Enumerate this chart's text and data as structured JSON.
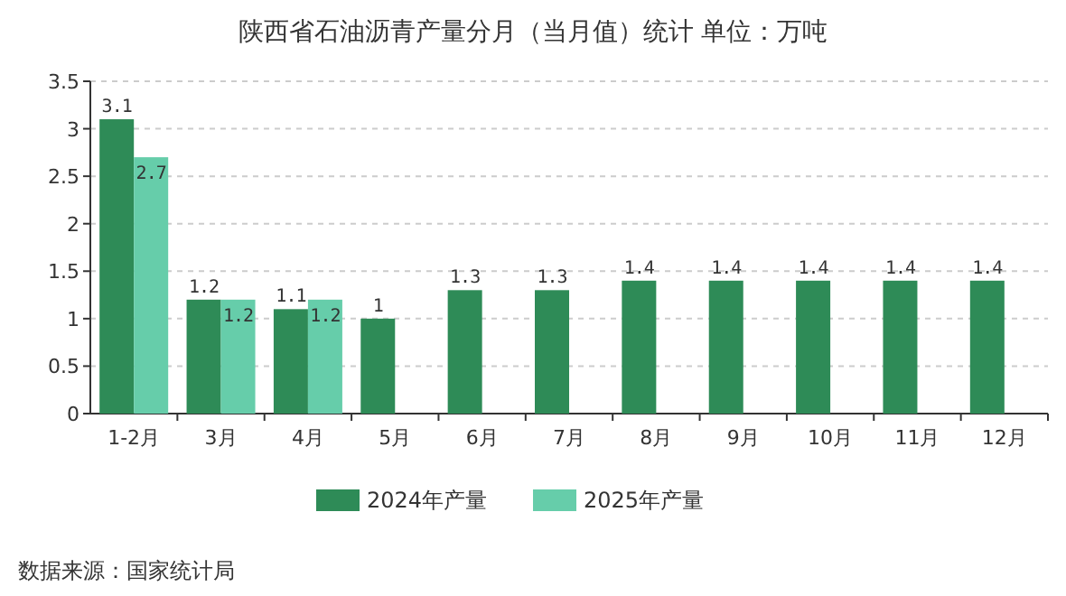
{
  "chart_data": {
    "type": "bar",
    "title": "陕西省石油沥青产量分月（当月值）统计 单位：万吨",
    "categories": [
      "1-2月",
      "3月",
      "4月",
      "5月",
      "6月",
      "7月",
      "8月",
      "9月",
      "10月",
      "11月",
      "12月"
    ],
    "series": [
      {
        "name": "2024年产量",
        "color": "#2e8b57",
        "values": [
          3.1,
          1.2,
          1.1,
          1,
          1.3,
          1.3,
          1.4,
          1.4,
          1.4,
          1.4,
          1.4
        ]
      },
      {
        "name": "2025年产量",
        "color": "#66cdaa",
        "values": [
          2.7,
          1.2,
          1.2,
          null,
          null,
          null,
          null,
          null,
          null,
          null,
          null
        ]
      }
    ],
    "ylim": [
      0,
      3.5
    ],
    "yticks": [
      0,
      0.5,
      1,
      1.5,
      2,
      2.5,
      3,
      3.5
    ],
    "grid": "y",
    "legend": "bottom",
    "data_labels": true,
    "annotations": [
      "数据来源：国家统计局"
    ]
  }
}
